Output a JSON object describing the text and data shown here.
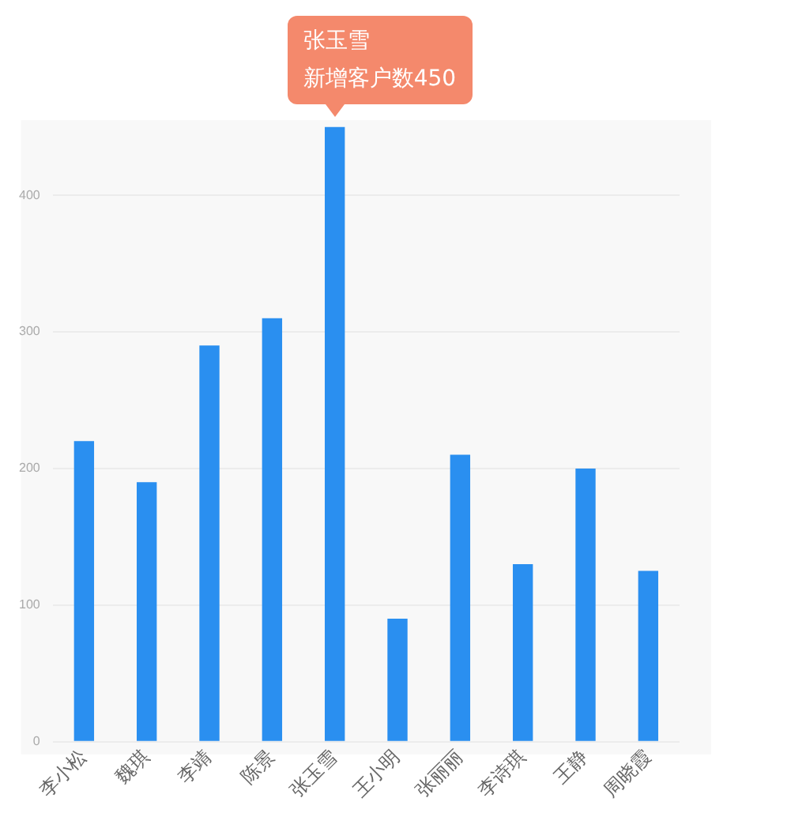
{
  "chart_data": {
    "type": "bar",
    "categories": [
      "李小松",
      "魏琪",
      "李靖",
      "陈景",
      "张玉雪",
      "王小明",
      "张丽丽",
      "李诗琪",
      "王静",
      "周晓霞"
    ],
    "values": [
      220,
      190,
      290,
      310,
      450,
      90,
      210,
      130,
      200,
      125
    ],
    "color": "#2a8ff0",
    "ylim": [
      0,
      455
    ],
    "yticks": [
      0,
      100,
      200,
      300,
      400
    ],
    "grid": "y",
    "legend": false,
    "annotations": [
      "张玉雪",
      {
        "text": "新增客户数450",
        "x": "张玉雪",
        "y": 450
      }
    ]
  }
}
